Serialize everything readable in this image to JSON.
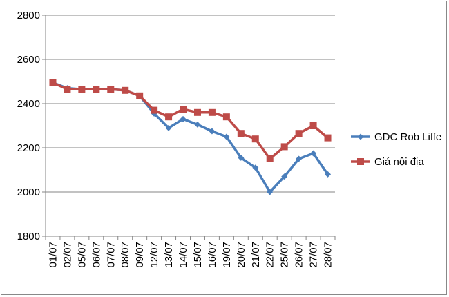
{
  "chart_data": {
    "type": "line",
    "title": "",
    "xlabel": "",
    "ylabel": "",
    "ylim": [
      1800,
      2800
    ],
    "yticks": [
      1800,
      2000,
      2200,
      2400,
      2600,
      2800
    ],
    "grid": true,
    "legend_position": "right",
    "categories": [
      "01/07",
      "02/07",
      "05/07",
      "06/07",
      "07/07",
      "08/07",
      "09/07",
      "12/07",
      "13/07",
      "14/07",
      "15/07",
      "16/07",
      "19/07",
      "20/07",
      "21/07",
      "22/07",
      "25/07",
      "26/07",
      "27/07",
      "28/07"
    ],
    "series": [
      {
        "name": "GDC Rob Liffe",
        "color": "#4A7EBB",
        "marker": "diamond",
        "values": [
          2495,
          2470,
          2465,
          2465,
          2465,
          2460,
          2435,
          2355,
          2290,
          2330,
          2305,
          2275,
          2250,
          2155,
          2110,
          2000,
          2070,
          2150,
          2175,
          2080
        ]
      },
      {
        "name": "Giá nội địa",
        "color": "#BE4B48",
        "marker": "square",
        "values": [
          2495,
          2465,
          2465,
          2465,
          2465,
          2460,
          2435,
          2370,
          2340,
          2375,
          2360,
          2360,
          2340,
          2265,
          2240,
          2150,
          2205,
          2265,
          2300,
          2245
        ]
      }
    ]
  }
}
